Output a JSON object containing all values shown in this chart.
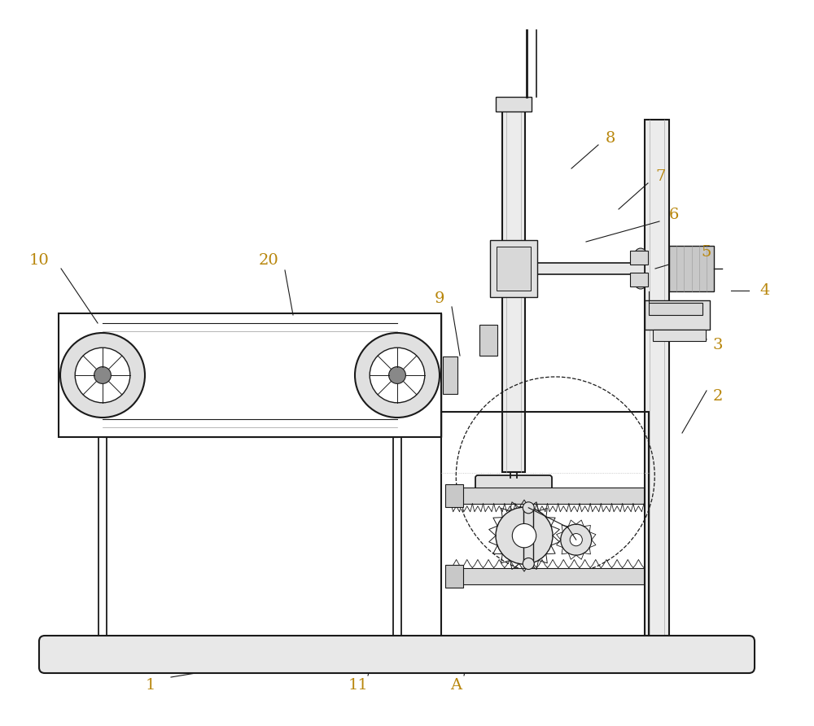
{
  "bg_color": "#ffffff",
  "line_color": "#1a1a1a",
  "label_color": "#b8860b",
  "fig_width": 10.0,
  "fig_height": 8.92,
  "dpi": 100
}
